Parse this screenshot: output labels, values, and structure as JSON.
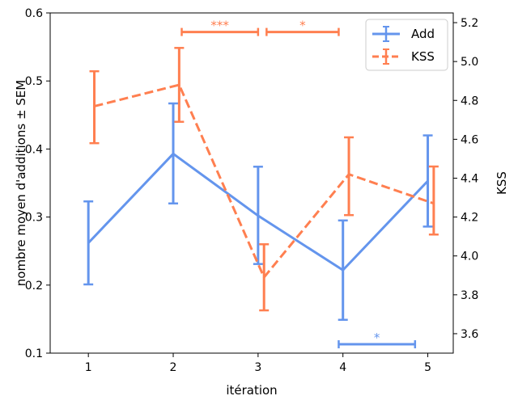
{
  "chart_data": {
    "type": "line",
    "xlabel": "itération",
    "ylabel_left": "nombre moyen d'additions ± SEM",
    "ylabel_right": "KSS",
    "x": [
      1,
      2,
      3,
      4,
      5
    ],
    "x_ticks": [
      "1",
      "2",
      "3",
      "4",
      "5"
    ],
    "xlim": [
      0.55,
      5.3
    ],
    "ylim_left": [
      0.1,
      0.6
    ],
    "ylim_right": [
      3.5,
      5.25
    ],
    "left_ticks": [
      "0.1",
      "0.2",
      "0.3",
      "0.4",
      "0.5",
      "0.6"
    ],
    "right_ticks": [
      "3.6",
      "3.8",
      "4.0",
      "4.2",
      "4.4",
      "4.6",
      "4.8",
      "5.0",
      "5.2"
    ],
    "series": [
      {
        "name": "Add",
        "axis": "left",
        "color": "#6495ed",
        "line_style": "solid",
        "x": [
          1,
          2,
          3,
          4,
          5
        ],
        "values": [
          0.262,
          0.393,
          0.302,
          0.222,
          0.353
        ],
        "err_low": [
          0.201,
          0.32,
          0.231,
          0.149,
          0.286
        ],
        "err_high": [
          0.323,
          0.467,
          0.374,
          0.295,
          0.42
        ]
      },
      {
        "name": "KSS",
        "axis": "right",
        "color": "#ff7f50",
        "line_style": "dashed",
        "x": [
          1.07,
          2.07,
          3.07,
          4.07,
          5.07
        ],
        "values": [
          4.77,
          4.88,
          3.89,
          4.42,
          4.27
        ],
        "err_low": [
          4.58,
          4.69,
          3.72,
          4.21,
          4.11
        ],
        "err_high": [
          4.95,
          5.07,
          4.06,
          4.61,
          4.46
        ]
      }
    ],
    "significance": [
      {
        "label": "***",
        "x_start": 2.1,
        "x_end": 3.0,
        "axis": "left",
        "y": 0.572,
        "color": "#ff7f50"
      },
      {
        "label": "*",
        "x_start": 3.1,
        "x_end": 3.95,
        "axis": "left",
        "y": 0.572,
        "color": "#ff7f50"
      },
      {
        "label": "*",
        "x_start": 3.95,
        "x_end": 4.85,
        "axis": "left",
        "y": 0.113,
        "color": "#6495ed"
      }
    ],
    "legend_position": "top-right",
    "grid": false
  }
}
